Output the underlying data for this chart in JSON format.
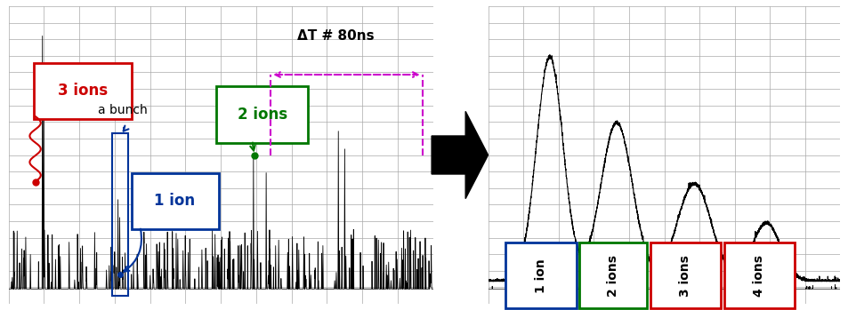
{
  "fig_width": 9.54,
  "fig_height": 3.49,
  "bg_color": "#ffffff",
  "grid_color": "#aaaaaa",
  "left_panel": {
    "oscilloscope_bg": "#e0e0e0",
    "grid_lines": 18,
    "grid_cols": 12,
    "annotation_3ions_text": "3 ions",
    "annotation_1ion_text": "1 ion",
    "annotation_2ions_text": "2 ions",
    "annotation_bunch_text": "a bunch",
    "annotation_dt_text": "ΔT # 80ns",
    "label_3ions_color": "#cc0000",
    "label_1ion_color": "#003399",
    "label_2ions_color": "#007700",
    "label_dt_color": "#cc00cc",
    "wavy_color": "#cc0000",
    "bunch_box_color": "#003399"
  },
  "right_panel": {
    "histogram_bg": "#e0e0e0",
    "grid_lines": 18,
    "grid_cols": 10,
    "box_1ion_color": "#003399",
    "box_2ions_color": "#007700",
    "box_3ions_color": "#cc0000",
    "box_4ions_color": "#cc0000",
    "curve_color": "#000000"
  },
  "arrow_color": "#000000"
}
